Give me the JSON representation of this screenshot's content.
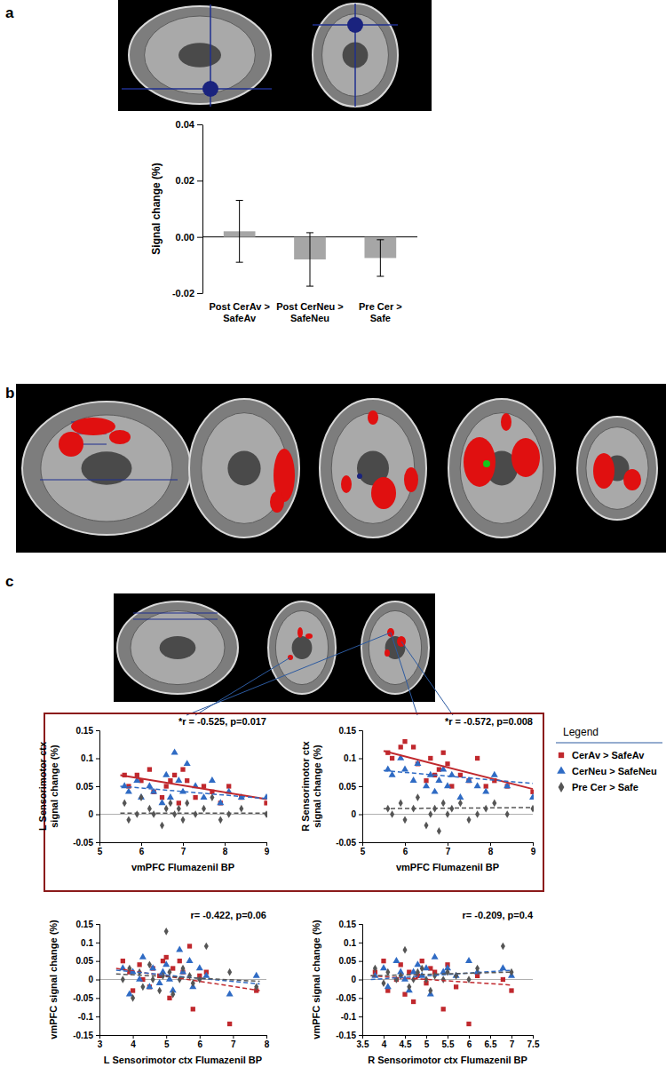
{
  "panel_labels": [
    "a",
    "b",
    "c"
  ],
  "chart_data": [
    {
      "type": "bar",
      "categories": [
        "Post CerAv > SafeAv",
        "Post CerNeu > SafeNeu",
        "Pre Cer > Safe"
      ],
      "values": [
        0.002,
        -0.008,
        -0.0075
      ],
      "errors": [
        0.011,
        0.0095,
        0.0065
      ],
      "color": "#a6a6a6",
      "y_label": "Signal change (%)",
      "ylim": [
        -0.02,
        0.04
      ],
      "yticks": [
        {
          "value": -0.02,
          "label": "-0.02"
        },
        {
          "value": 0,
          "label": "0.00"
        },
        {
          "value": 0.02,
          "label": "0.02"
        },
        {
          "value": 0.04,
          "label": "0.04"
        }
      ]
    },
    {
      "type": "scatter",
      "annotation": "*r = -0.525, p=0.017",
      "x_label": "vmPFC Flumazenil BP",
      "y_label": "L Sensorimotor ctx signal change (%)",
      "xlim": [
        5,
        9
      ],
      "xticks": [
        5,
        6,
        7,
        8,
        9
      ],
      "ylim": [
        -0.05,
        0.15
      ],
      "yticks": [
        -0.05,
        0,
        0.05,
        0.1,
        0.15
      ],
      "x": [
        5.6,
        5.7,
        5.9,
        6.0,
        6.2,
        6.3,
        6.5,
        6.6,
        6.7,
        6.8,
        6.9,
        7.0,
        7.1,
        7.3,
        7.5,
        7.7,
        7.9,
        8.1,
        8.4,
        9.0
      ],
      "series": [
        {
          "color": "#c0282d",
          "marker": "square",
          "line_style": "solid",
          "values": [
            0.07,
            0.05,
            0.07,
            0.06,
            0.08,
            0.04,
            0.03,
            0.05,
            0.06,
            0.07,
            0.02,
            0.08,
            0.06,
            0.03,
            0.05,
            0.04,
            0.02,
            0.05,
            0.03,
            0.02
          ],
          "fit": {
            "x": [
              5.5,
              9
            ],
            "values": [
              0.07,
              0.027
            ]
          }
        },
        {
          "color": "#2f6bc4",
          "marker": "triangle",
          "line_style": "dashed",
          "values": [
            0.05,
            0.04,
            0.06,
            0.03,
            0.05,
            0.04,
            0.02,
            0.07,
            0.03,
            0.11,
            0.06,
            0.04,
            0.09,
            0.05,
            0.03,
            0.06,
            0.02,
            0.04,
            0.03,
            0.03
          ],
          "fit": {
            "x": [
              5.5,
              9
            ],
            "values": [
              0.05,
              0.028
            ]
          }
        },
        {
          "color": "#555555",
          "marker": "diamond",
          "line_style": "dashed",
          "values": [
            0.02,
            -0.01,
            0.0,
            0.03,
            0.01,
            0.0,
            -0.02,
            0.01,
            0.02,
            0.0,
            0.01,
            -0.01,
            0.02,
            0.0,
            0.01,
            0.03,
            -0.01,
            0.0,
            0.01,
            0.0
          ],
          "fit": {
            "x": [
              5.5,
              9
            ],
            "values": [
              0.002,
              0.002
            ]
          }
        }
      ]
    },
    {
      "type": "scatter",
      "annotation": "*r = -0.572, p=0.008",
      "x_label": "vmPFC Flumazenil BP",
      "y_label": "R Sensorimotor ctx signal change (%)",
      "legend": "right",
      "legend_title": "Legend",
      "xlim": [
        5,
        9
      ],
      "xticks": [
        5,
        6,
        7,
        8,
        9
      ],
      "ylim": [
        -0.05,
        0.15
      ],
      "yticks": [
        -0.05,
        0,
        0.05,
        0.1,
        0.15
      ],
      "x": [
        5.6,
        5.7,
        5.9,
        6.0,
        6.2,
        6.3,
        6.5,
        6.6,
        6.7,
        6.8,
        6.9,
        7.0,
        7.1,
        7.3,
        7.5,
        7.7,
        7.9,
        8.1,
        8.4,
        9.0
      ],
      "series": [
        {
          "name": "CerAv > SafeAv",
          "color": "#c0282d",
          "marker": "square",
          "line_style": "solid",
          "values": [
            0.11,
            0.1,
            0.12,
            0.13,
            0.12,
            0.09,
            0.06,
            0.1,
            0.07,
            0.08,
            0.11,
            0.09,
            0.05,
            0.07,
            0.06,
            0.1,
            0.05,
            0.06,
            0.05,
            0.04
          ],
          "fit": {
            "x": [
              5.5,
              9
            ],
            "values": [
              0.113,
              0.045
            ]
          }
        },
        {
          "name": "CerNeu > SafeNeu",
          "color": "#2f6bc4",
          "marker": "triangle",
          "line_style": "dashed",
          "values": [
            0.08,
            0.07,
            0.1,
            0.08,
            0.06,
            0.09,
            0.05,
            0.07,
            0.04,
            0.06,
            0.08,
            0.05,
            0.07,
            0.03,
            0.06,
            0.05,
            0.04,
            0.07,
            0.05,
            0.03
          ],
          "fit": {
            "x": [
              5.5,
              9
            ],
            "values": [
              0.078,
              0.055
            ]
          }
        },
        {
          "name": "Pre Cer > Safe",
          "color": "#555555",
          "marker": "diamond",
          "line_style": "dashed",
          "values": [
            0.01,
            0.0,
            0.02,
            -0.01,
            0.01,
            0.03,
            -0.02,
            0.0,
            0.01,
            -0.03,
            0.02,
            0.0,
            0.01,
            0.02,
            -0.01,
            0.0,
            0.01,
            0.02,
            0.0,
            0.01
          ],
          "fit": {
            "x": [
              5.5,
              9
            ],
            "values": [
              0.01,
              0.012
            ]
          }
        }
      ]
    },
    {
      "type": "scatter",
      "annotation": "r= -0.422, p=0.06",
      "x_label": "L Sensorimotor ctx Flumazenil BP",
      "y_label": "vmPFC signal change (%)",
      "xlim": [
        3,
        8
      ],
      "xticks": [
        3,
        4,
        5,
        6,
        7,
        8
      ],
      "ylim": [
        -0.15,
        0.15
      ],
      "yticks": [
        -0.15,
        -0.1,
        -0.05,
        0,
        0.05,
        0.1,
        0.15
      ],
      "x": [
        3.7,
        3.9,
        4.0,
        4.2,
        4.3,
        4.5,
        4.6,
        4.8,
        4.9,
        5.0,
        5.1,
        5.2,
        5.4,
        5.5,
        5.7,
        5.8,
        6.0,
        6.2,
        6.9,
        7.7
      ],
      "series": [
        {
          "color": "#c0282d",
          "marker": "square",
          "line_style": "dashed",
          "values": [
            0.05,
            0.02,
            -0.03,
            0.04,
            0.0,
            -0.02,
            0.03,
            0.01,
            0.05,
            0.06,
            -0.05,
            0.03,
            0.05,
            0.02,
            0.09,
            -0.08,
            0.01,
            0.02,
            -0.12,
            -0.03
          ],
          "fit": {
            "x": [
              3.5,
              7.8
            ],
            "values": [
              0.03,
              -0.03
            ]
          }
        },
        {
          "color": "#2f6bc4",
          "marker": "triangle",
          "line_style": "dashed",
          "values": [
            0.03,
            -0.04,
            0.02,
            0.0,
            0.06,
            -0.02,
            0.03,
            -0.01,
            0.02,
            0.04,
            0.0,
            -0.03,
            0.08,
            0.02,
            0.05,
            -0.02,
            0.03,
            0.01,
            -0.04,
            0.01
          ],
          "fit": {
            "x": [
              3.5,
              7.8
            ],
            "values": [
              0.025,
              -0.012
            ]
          }
        },
        {
          "color": "#555555",
          "marker": "diamond",
          "line_style": "dashed",
          "values": [
            0.0,
            0.03,
            -0.05,
            0.02,
            -0.02,
            0.04,
            0.0,
            -0.03,
            0.01,
            0.13,
            0.02,
            -0.04,
            0.0,
            0.03,
            0.01,
            -0.01,
            0.0,
            0.09,
            0.02,
            -0.02
          ],
          "fit": {
            "x": [
              3.5,
              7.8
            ],
            "values": [
              0.015,
              -0.005
            ]
          }
        }
      ]
    },
    {
      "type": "scatter",
      "annotation": "r= -0.209, p=0.4",
      "x_label": "R Sensorimotor ctx Flumazenil BP",
      "y_label": "vmPFC signal change (%)",
      "xlim": [
        3.5,
        7.5
      ],
      "xticks": [
        3.5,
        4,
        4.5,
        5,
        5.5,
        6,
        6.5,
        7,
        7.5
      ],
      "ylim": [
        -0.15,
        0.15
      ],
      "yticks": [
        -0.15,
        -0.1,
        -0.05,
        0,
        0.05,
        0.1,
        0.15
      ],
      "x": [
        3.8,
        4.0,
        4.1,
        4.3,
        4.4,
        4.5,
        4.6,
        4.7,
        4.8,
        4.9,
        5.0,
        5.1,
        5.2,
        5.4,
        5.5,
        5.7,
        6.0,
        6.2,
        6.8,
        7.0
      ],
      "series": [
        {
          "color": "#c0282d",
          "marker": "square",
          "line_style": "dashed",
          "values": [
            0.02,
            0.05,
            -0.03,
            0.0,
            0.04,
            -0.04,
            0.02,
            -0.06,
            0.01,
            0.05,
            -0.01,
            0.03,
            0.02,
            -0.08,
            0.04,
            -0.02,
            -0.12,
            0.01,
            0.0,
            -0.03
          ],
          "fit": {
            "x": [
              3.7,
              7
            ],
            "values": [
              0.01,
              -0.015
            ]
          }
        },
        {
          "color": "#2f6bc4",
          "marker": "triangle",
          "line_style": "dashed",
          "values": [
            0.01,
            0.03,
            -0.02,
            0.05,
            0.02,
            0.0,
            -0.03,
            0.02,
            0.04,
            0.01,
            0.03,
            -0.04,
            0.06,
            0.02,
            0.03,
            0.01,
            0.05,
            0.02,
            0.03,
            0.01
          ],
          "fit": {
            "x": [
              3.7,
              7
            ],
            "values": [
              0.0,
              0.025
            ]
          }
        },
        {
          "color": "#555555",
          "marker": "diamond",
          "line_style": "dashed",
          "values": [
            0.03,
            -0.01,
            0.02,
            0.0,
            0.01,
            0.08,
            -0.02,
            0.0,
            0.02,
            0.03,
            0.0,
            -0.03,
            0.01,
            0.0,
            0.02,
            0.01,
            0.0,
            0.03,
            0.09,
            0.02
          ],
          "fit": {
            "x": [
              3.7,
              7
            ],
            "values": [
              0.01,
              0.02
            ]
          }
        }
      ]
    }
  ]
}
